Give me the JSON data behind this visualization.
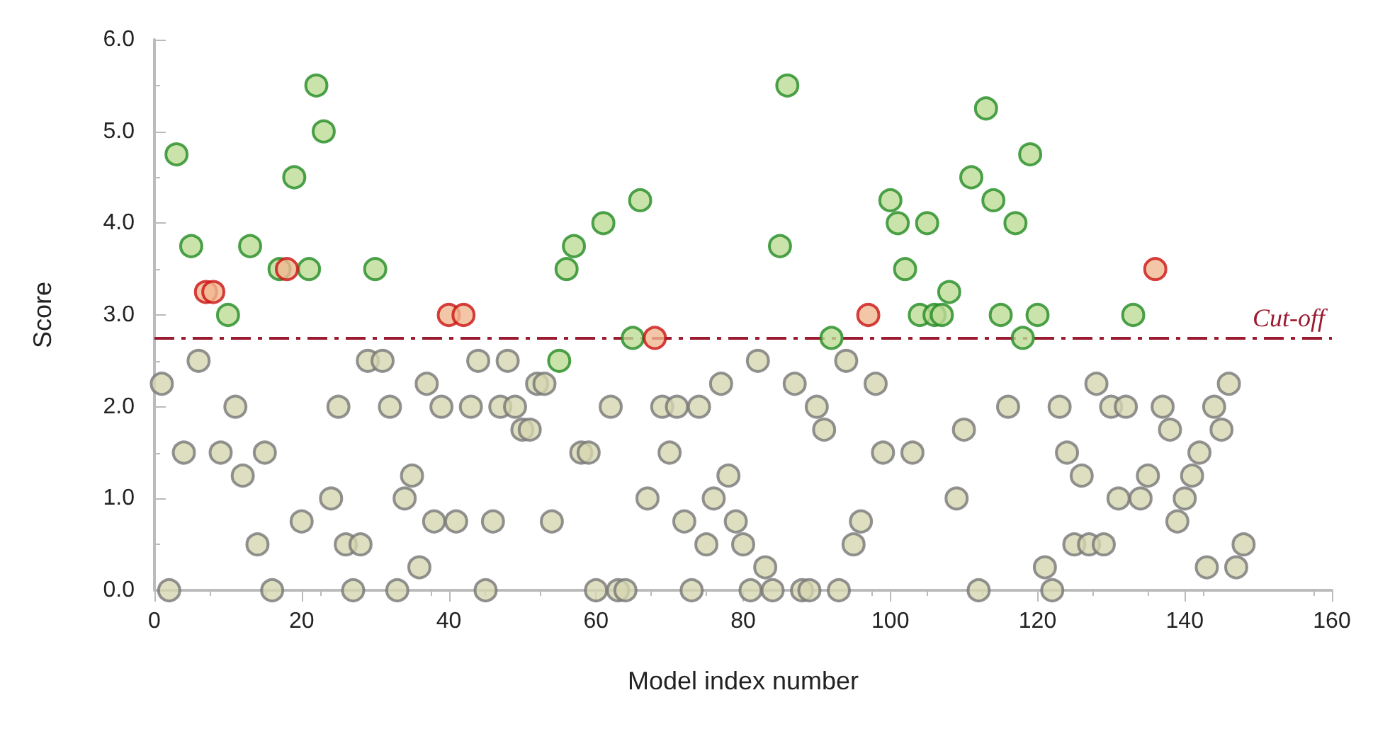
{
  "chart_data": {
    "type": "scatter",
    "xlabel": "Model index number",
    "ylabel": "Score",
    "xlim": [
      0,
      160
    ],
    "xticks": [
      0,
      20,
      40,
      60,
      80,
      100,
      120,
      140,
      160
    ],
    "ylim": [
      0,
      6
    ],
    "yticks": [
      {
        "value": 0,
        "label": "0.0"
      },
      {
        "value": 1,
        "label": "1.0"
      },
      {
        "value": 2,
        "label": "2.0"
      },
      {
        "value": 3,
        "label": "3.0"
      },
      {
        "value": 4,
        "label": "4.0"
      },
      {
        "value": 5,
        "label": "5.0"
      },
      {
        "value": 6,
        "label": "6.0"
      }
    ],
    "grid": false,
    "marker": "circle",
    "series": [
      {
        "color": "#777777",
        "x": [
          1,
          2,
          4,
          6,
          9,
          11,
          12,
          14,
          15,
          16,
          20,
          24,
          25,
          26,
          27,
          28,
          29,
          31,
          32,
          33,
          34,
          35,
          36,
          37,
          38,
          39,
          41,
          43,
          44,
          45,
          46,
          47,
          48,
          49,
          50,
          51,
          52,
          53,
          54,
          58,
          59,
          60,
          62,
          63,
          64,
          67,
          69,
          70,
          71,
          72,
          73,
          74,
          75,
          76,
          77,
          78,
          79,
          80,
          81,
          82,
          83,
          84,
          87,
          88,
          89,
          90,
          91,
          93,
          94,
          95,
          96,
          98,
          99,
          103,
          109,
          110,
          112,
          116,
          121,
          122,
          123,
          124,
          125,
          126,
          127,
          128,
          129,
          130,
          131,
          132,
          134,
          135,
          137,
          138,
          139,
          140,
          141,
          142,
          143,
          144,
          145,
          146,
          147,
          148
        ],
        "values": [
          2.25,
          0,
          1.5,
          2.5,
          1.5,
          2.0,
          1.25,
          0.5,
          1.5,
          0,
          0.75,
          1.0,
          2.0,
          0.5,
          0,
          0.5,
          2.5,
          2.5,
          2.0,
          0,
          1.0,
          1.25,
          0.25,
          2.25,
          0.75,
          2.0,
          0.75,
          2.0,
          2.5,
          0,
          0.75,
          2.0,
          2.5,
          2.0,
          1.75,
          1.75,
          2.25,
          2.25,
          0.75,
          1.5,
          1.5,
          0,
          2.0,
          0,
          0,
          1.0,
          2.0,
          1.5,
          2.0,
          0.75,
          0,
          2.0,
          0.5,
          1.0,
          2.25,
          1.25,
          0.75,
          0.5,
          0,
          2.5,
          0.25,
          0,
          2.25,
          0,
          0,
          2.0,
          1.75,
          0,
          2.5,
          0.5,
          0.75,
          2.25,
          1.5,
          1.5,
          1.0,
          1.75,
          0,
          2.0,
          0.25,
          0,
          2.0,
          1.5,
          0.5,
          1.25,
          0.5,
          2.25,
          0.5,
          2.0,
          1.0,
          2.0,
          1.0,
          1.25,
          2.0,
          1.75,
          0.75,
          1.0,
          1.25,
          1.5,
          0.25,
          2.0,
          1.75,
          2.25,
          0.25,
          0.5
        ]
      },
      {
        "color": "#228b22",
        "x": [
          3,
          5,
          10,
          13,
          17,
          19,
          21,
          22,
          23,
          30,
          55,
          56,
          57,
          61,
          65,
          66,
          85,
          86,
          92,
          100,
          101,
          102,
          104,
          105,
          106,
          107,
          108,
          111,
          113,
          114,
          115,
          117,
          118,
          119,
          120,
          133
        ],
        "values": [
          4.75,
          3.75,
          3.0,
          3.75,
          3.5,
          4.5,
          3.5,
          5.5,
          5.0,
          3.5,
          2.5,
          3.5,
          3.75,
          4.0,
          2.75,
          4.25,
          3.75,
          5.5,
          2.75,
          4.25,
          4.0,
          3.5,
          3.0,
          4.0,
          3.0,
          3.0,
          3.25,
          4.5,
          5.25,
          4.25,
          3.0,
          4.0,
          2.75,
          4.75,
          3.0,
          3.0
        ]
      },
      {
        "color": "#cc1111",
        "x": [
          7,
          8,
          18,
          40,
          42,
          68,
          97,
          136
        ],
        "values": [
          3.25,
          3.25,
          3.5,
          3.0,
          3.0,
          2.75,
          3.0,
          3.5
        ]
      }
    ],
    "ref_lines": [
      {
        "axis": "y",
        "value": 2.75,
        "label": "Cut-off",
        "color": "#9b1b30",
        "line_style": "dashed"
      }
    ]
  }
}
